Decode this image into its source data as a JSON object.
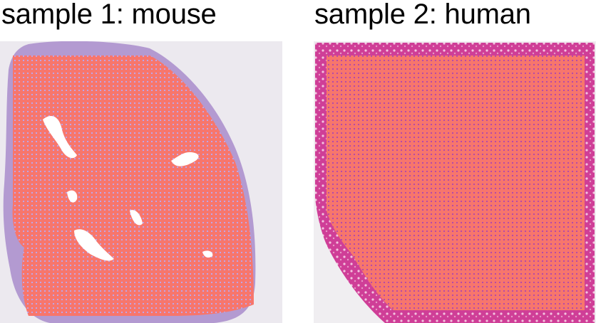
{
  "panels": [
    {
      "title": "sample 1: mouse",
      "species": "mouse",
      "tissue_color": "#b39ad1",
      "spot_fill_color": "#f7766c",
      "spot_grid_color": "#bfa5e8",
      "background_color": "#ece9ef"
    },
    {
      "title": "sample 2: human",
      "species": "human",
      "tissue_color": "#cf3e97",
      "spot_fill_color": "#f7766c",
      "spot_grid_color": "#b54aa8",
      "background_color": "#f0eef1"
    }
  ]
}
